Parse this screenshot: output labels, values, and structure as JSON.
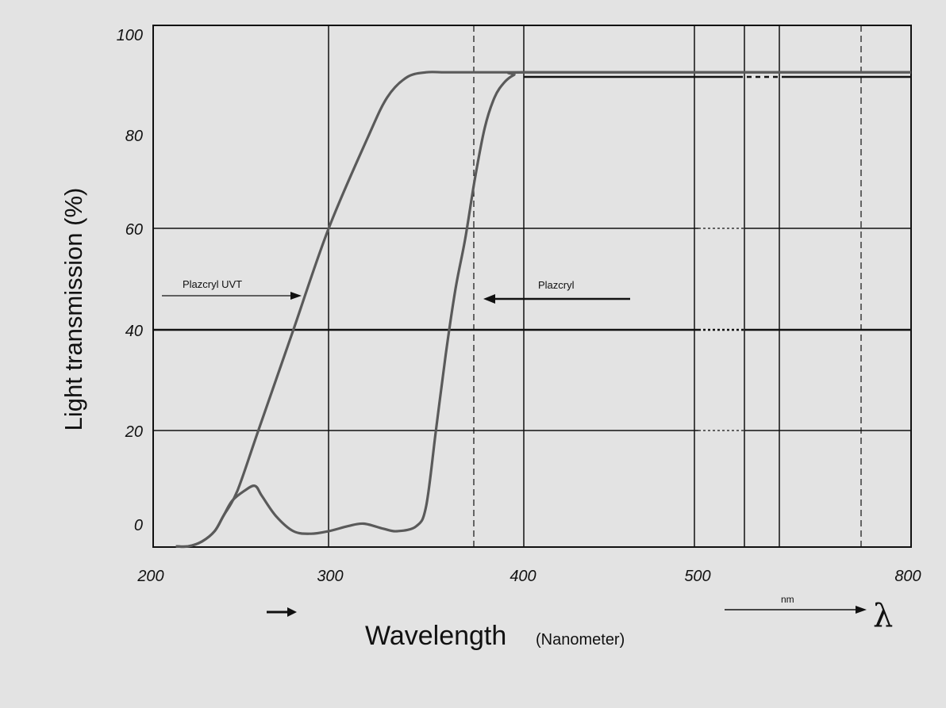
{
  "chart_data": {
    "type": "line",
    "ylabel": "Light transmission (%)",
    "xlabel": "Wavelength",
    "xlabel_sub": "(Nanometer)",
    "unit_label": "nm",
    "lambda_symbol": "λ",
    "x_tick_labels": [
      "200",
      "300",
      "400",
      "500",
      "800"
    ],
    "y_tick_labels": [
      "100",
      "80",
      "60",
      "40",
      "20",
      "0"
    ],
    "ylim": [
      -3,
      100
    ],
    "grid": true,
    "series": [
      {
        "name": "Plazcryl UVT",
        "x": [
          213,
          220,
          228,
          235,
          240,
          248,
          260,
          280,
          300,
          320,
          330,
          340,
          350,
          360,
          380,
          400,
          500,
          800
        ],
        "y": [
          -3,
          -3,
          -2,
          0,
          3,
          8,
          20,
          40,
          60,
          78,
          86,
          90,
          91,
          91,
          91,
          91,
          91,
          91
        ]
      },
      {
        "name": "Plazcryl",
        "x": [
          213,
          220,
          228,
          235,
          240,
          245,
          252,
          258,
          262,
          270,
          280,
          290,
          300,
          310,
          318,
          328,
          335,
          345,
          350,
          355,
          360,
          365,
          370,
          375,
          380,
          385,
          390,
          395,
          400,
          500,
          800
        ],
        "y": [
          -3,
          -3,
          -2,
          0,
          3,
          6,
          8,
          9,
          7,
          3,
          0,
          -0.5,
          0,
          1,
          1.5,
          0.5,
          0,
          1,
          5,
          20,
          35,
          48,
          58,
          70,
          80,
          86,
          89,
          90.5,
          91,
          91,
          91
        ]
      }
    ],
    "annotations": [
      {
        "label": "Plazcryl UVT",
        "target_series": "Plazcryl UVT"
      },
      {
        "label": "Plazcryl",
        "target_series": "Plazcryl"
      }
    ]
  }
}
